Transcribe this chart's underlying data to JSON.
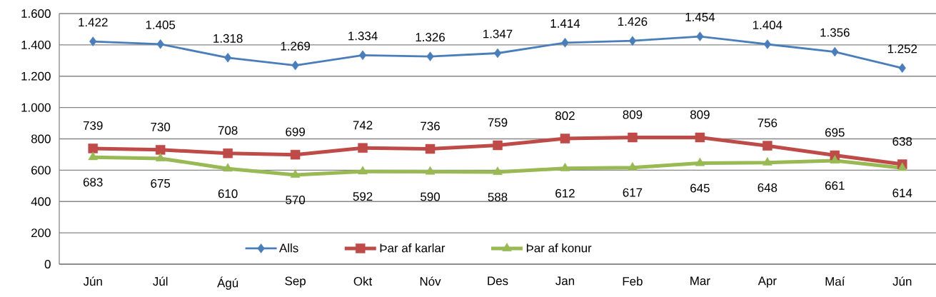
{
  "chart_data": {
    "type": "line",
    "categories": [
      "Jún",
      "Júl",
      "Ágú",
      "Sep",
      "Okt",
      "Nóv",
      "Des",
      "Jan",
      "Feb",
      "Mar",
      "Apr",
      "Maí",
      "Jún"
    ],
    "ylim": [
      0,
      1600
    ],
    "yticks": [
      0,
      200,
      400,
      600,
      800,
      {
        "value": 1000,
        "label": "1.000"
      },
      {
        "value": 1200,
        "label": "1.200"
      },
      {
        "value": 1400,
        "label": "1.400"
      },
      {
        "value": 1600,
        "label": "1.600"
      }
    ],
    "grid": "y",
    "legend": "bottom",
    "series": [
      {
        "name": "Alls",
        "color": "#4a7ebb",
        "marker": "diamond",
        "values": [
          1422,
          1405,
          1318,
          1269,
          1334,
          1326,
          1347,
          1414,
          1426,
          1454,
          1404,
          1356,
          1252
        ],
        "value_labels": [
          "1.422",
          "1.405",
          "1.318",
          "1.269",
          "1.334",
          "1.326",
          "1.347",
          "1.414",
          "1.426",
          "1.454",
          "1.404",
          "1.356",
          "1.252"
        ]
      },
      {
        "name": "Þar af karlar",
        "color": "#be4b48",
        "marker": "square",
        "values": [
          739,
          730,
          708,
          699,
          742,
          736,
          759,
          802,
          809,
          809,
          756,
          695,
          638
        ],
        "value_labels": [
          "739",
          "730",
          "708",
          "699",
          "742",
          "736",
          "759",
          "802",
          "809",
          "809",
          "756",
          "695",
          "638"
        ]
      },
      {
        "name": "Þar af konur",
        "color": "#98b954",
        "marker": "triangle",
        "values": [
          683,
          675,
          610,
          570,
          592,
          590,
          588,
          612,
          617,
          645,
          648,
          661,
          614
        ],
        "value_labels": [
          "683",
          "675",
          "610",
          "570",
          "592",
          "590",
          "588",
          "612",
          "617",
          "645",
          "648",
          "661",
          "614"
        ]
      }
    ]
  }
}
